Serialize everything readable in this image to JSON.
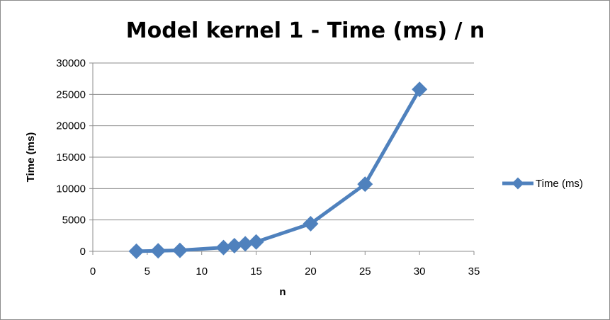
{
  "chart_data": {
    "type": "scatter",
    "title": "Model kernel 1 - Time (ms) / n",
    "xlabel": "n",
    "ylabel": "Time (ms)",
    "xlim": [
      0,
      35
    ],
    "ylim": [
      0,
      30000
    ],
    "x_ticks": [
      "0",
      "5",
      "10",
      "15",
      "20",
      "25",
      "30",
      "35"
    ],
    "y_ticks": [
      "0",
      "5000",
      "10000",
      "15000",
      "20000",
      "25000",
      "30000"
    ],
    "grid": "horizontal",
    "legend_position": "right",
    "series": [
      {
        "name": "Time (ms)",
        "color": "#4F81BD",
        "marker": "diamond",
        "line": true,
        "x": [
          4,
          6,
          8,
          12,
          13,
          14,
          15,
          20,
          25,
          30
        ],
        "y": [
          20,
          80,
          150,
          600,
          900,
          1200,
          1500,
          4400,
          10700,
          25800
        ]
      }
    ]
  }
}
